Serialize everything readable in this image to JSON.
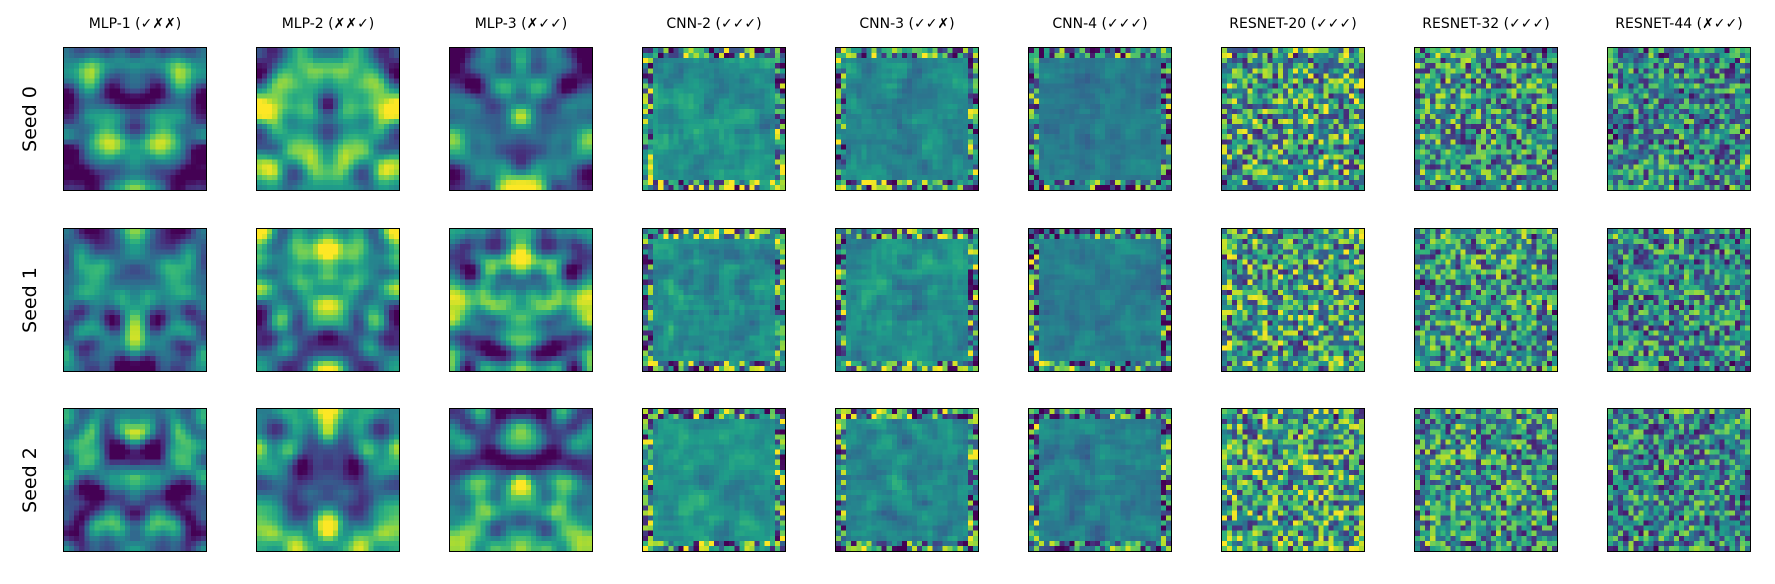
{
  "chart_data": {
    "type": "heatmap",
    "colormap": "viridis",
    "columns": [
      "MLP-1 (✓✗✗)",
      "MLP-2 (✗✗✓)",
      "MLP-3 (✗✓✓)",
      "CNN-2 (✓✓✓)",
      "CNN-3 (✓✓✗)",
      "CNN-4 (✓✓✓)",
      "RESNET-20 (✓✓✓)",
      "RESNET-32 (✓✓✓)",
      "RESNET-44 (✗✓✓)"
    ],
    "rows": [
      "Seed 0",
      "Seed 1",
      "Seed 2"
    ],
    "ticks": "none"
  }
}
